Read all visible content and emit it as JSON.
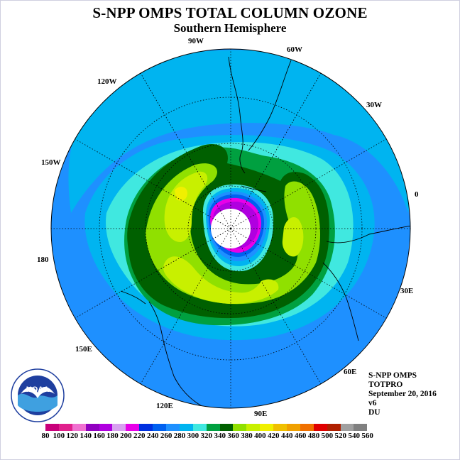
{
  "title": "S-NPP OMPS TOTAL COLUMN OZONE",
  "subtitle": "Southern Hemisphere",
  "longitude_labels": [
    "90W",
    "60W",
    "30W",
    "0",
    "30E",
    "60E",
    "90E",
    "120E",
    "150E",
    "180",
    "150W",
    "120W"
  ],
  "info": {
    "line1": "S-NPP OMPS",
    "line2": "TOTPRO",
    "line3": "September 20, 2016",
    "line4": "v6",
    "line5": "DU"
  },
  "logo_text": "NOAA",
  "colorbar": {
    "labels": [
      "80",
      "100",
      "120",
      "140",
      "160",
      "180",
      "200",
      "220",
      "240",
      "260",
      "280",
      "300",
      "320",
      "340",
      "360",
      "380",
      "400",
      "420",
      "440",
      "460",
      "480",
      "500",
      "520",
      "540",
      "560"
    ],
    "colors": [
      "#c8007a",
      "#e0208c",
      "#f070d0",
      "#9000c0",
      "#b000e0",
      "#d8a0f0",
      "#e800e8",
      "#0030e0",
      "#0060f0",
      "#1e90ff",
      "#00b4f0",
      "#40e8e0",
      "#00a040",
      "#006000",
      "#90e000",
      "#c8f000",
      "#f0f000",
      "#f0c000",
      "#f0a000",
      "#f07000",
      "#e00000",
      "#b02000",
      "#a0a0a0",
      "#808080"
    ]
  }
}
